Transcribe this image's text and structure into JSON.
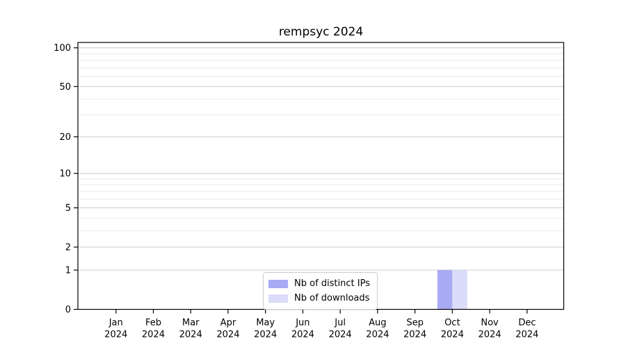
{
  "chart_data": {
    "type": "bar",
    "title": "rempsyc 2024",
    "x": [
      "Jan",
      "Feb",
      "Mar",
      "Apr",
      "May",
      "Jun",
      "Jul",
      "Aug",
      "Sep",
      "Oct",
      "Nov",
      "Dec"
    ],
    "x_year": "2024",
    "series": [
      {
        "name": "Nb of distinct IPs",
        "color": "#a9aaf4",
        "values": [
          0,
          0,
          0,
          0,
          0,
          0,
          0,
          0,
          0,
          1,
          0,
          0
        ]
      },
      {
        "name": "Nb of downloads",
        "color": "#dbdcf9",
        "values": [
          0,
          0,
          0,
          0,
          0,
          0,
          0,
          0,
          0,
          1,
          0,
          0
        ]
      }
    ],
    "yscale": "log1p",
    "ylim": [
      0,
      110
    ],
    "y_major_ticks": [
      0,
      1,
      2,
      5,
      10,
      20,
      50,
      100
    ],
    "y_minor_ticks": [
      3,
      4,
      6,
      7,
      8,
      9,
      30,
      40,
      60,
      70,
      80,
      90
    ],
    "grid": "on",
    "legend_position": "lower center",
    "style": {
      "spine_color": "#000000",
      "major_grid_color": "#cccccc",
      "minor_grid_color": "#eaeaea",
      "tick_label_color": "#000000"
    }
  }
}
